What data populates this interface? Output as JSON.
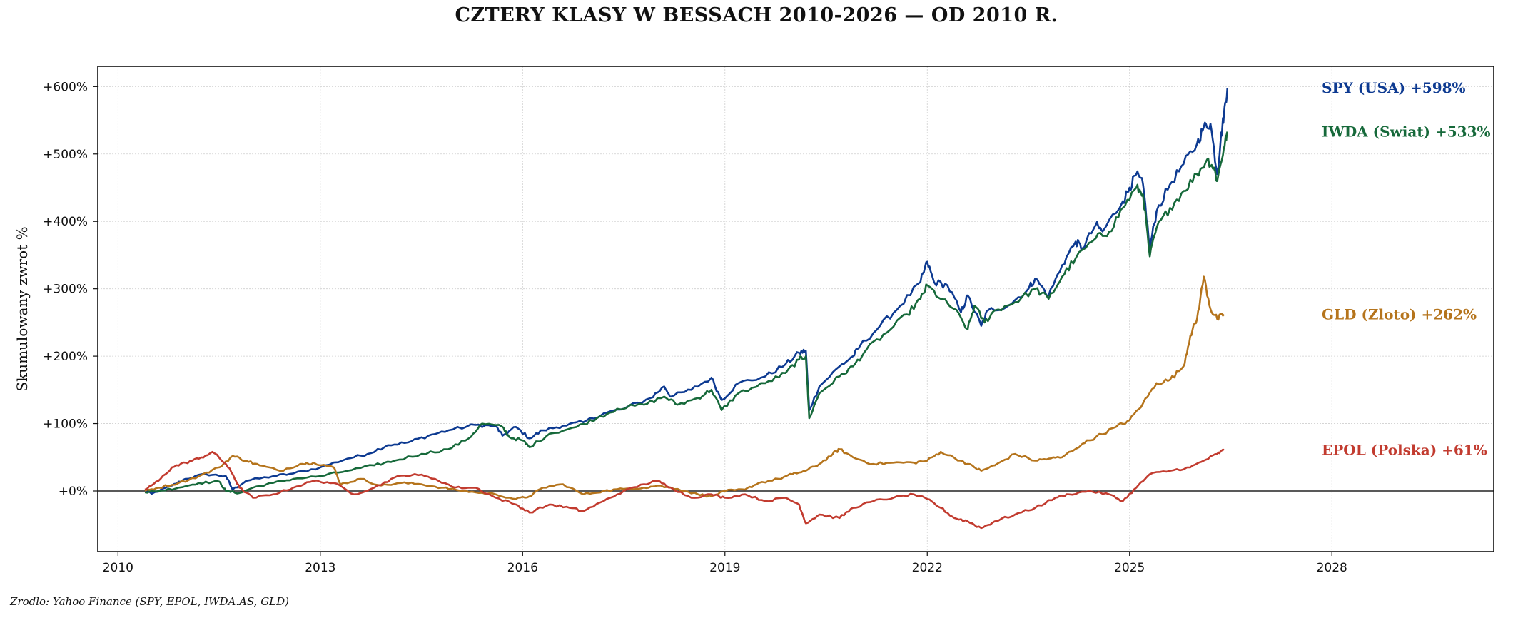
{
  "chart_data": {
    "type": "line",
    "title": "CZTERY KLASY W BESSACH 2010-2026 — OD 2010 R.",
    "ylabel": "Skumulowany zwrot %",
    "xlabel": "",
    "source": "Zrodlo: Yahoo Finance (SPY, EPOL, IWDA.AS, GLD)",
    "xlim": [
      2009.7,
      2030.4
    ],
    "ylim": [
      -90,
      630
    ],
    "x_ticks": [
      2010,
      2013,
      2016,
      2019,
      2022,
      2025,
      2028
    ],
    "x_tick_labels": [
      "2010",
      "2013",
      "2016",
      "2019",
      "2022",
      "2025",
      "2028"
    ],
    "y_ticks": [
      0,
      100,
      200,
      300,
      400,
      500,
      600
    ],
    "y_tick_labels": [
      "+0%",
      "+100%",
      "+200%",
      "+300%",
      "+400%",
      "+500%",
      "+600%"
    ],
    "grid": true,
    "zero_line": true,
    "series": [
      {
        "name": "SPY (USA)",
        "end_label": "SPY (USA)  +598%",
        "label_y": 598,
        "color": "#0d3a91",
        "points": [
          [
            2010.4,
            0
          ],
          [
            2010.5,
            -4
          ],
          [
            2010.8,
            8
          ],
          [
            2011.0,
            18
          ],
          [
            2011.3,
            25
          ],
          [
            2011.6,
            22
          ],
          [
            2011.7,
            2
          ],
          [
            2011.9,
            15
          ],
          [
            2012.3,
            22
          ],
          [
            2012.6,
            26
          ],
          [
            2013.0,
            35
          ],
          [
            2013.4,
            48
          ],
          [
            2013.7,
            55
          ],
          [
            2014.0,
            68
          ],
          [
            2014.3,
            72
          ],
          [
            2014.6,
            82
          ],
          [
            2014.9,
            90
          ],
          [
            2015.3,
            98
          ],
          [
            2015.6,
            96
          ],
          [
            2015.7,
            82
          ],
          [
            2015.9,
            95
          ],
          [
            2016.1,
            78
          ],
          [
            2016.3,
            90
          ],
          [
            2016.6,
            97
          ],
          [
            2016.9,
            102
          ],
          [
            2017.2,
            115
          ],
          [
            2017.5,
            122
          ],
          [
            2017.9,
            138
          ],
          [
            2018.1,
            155
          ],
          [
            2018.2,
            140
          ],
          [
            2018.5,
            150
          ],
          [
            2018.8,
            168
          ],
          [
            2018.95,
            135
          ],
          [
            2019.2,
            160
          ],
          [
            2019.6,
            170
          ],
          [
            2019.9,
            188
          ],
          [
            2020.1,
            205
          ],
          [
            2020.2,
            208
          ],
          [
            2020.25,
            120
          ],
          [
            2020.4,
            155
          ],
          [
            2020.7,
            185
          ],
          [
            2020.9,
            200
          ],
          [
            2021.0,
            215
          ],
          [
            2021.3,
            245
          ],
          [
            2021.6,
            275
          ],
          [
            2021.9,
            310
          ],
          [
            2022.0,
            340
          ],
          [
            2022.1,
            310
          ],
          [
            2022.3,
            305
          ],
          [
            2022.5,
            265
          ],
          [
            2022.6,
            290
          ],
          [
            2022.8,
            245
          ],
          [
            2022.9,
            268
          ],
          [
            2023.2,
            275
          ],
          [
            2023.5,
            300
          ],
          [
            2023.6,
            315
          ],
          [
            2023.8,
            290
          ],
          [
            2024.0,
            335
          ],
          [
            2024.2,
            370
          ],
          [
            2024.3,
            360
          ],
          [
            2024.5,
            395
          ],
          [
            2024.6,
            385
          ],
          [
            2024.9,
            430
          ],
          [
            2025.0,
            450
          ],
          [
            2025.1,
            470
          ],
          [
            2025.2,
            455
          ],
          [
            2025.3,
            360
          ],
          [
            2025.4,
            415
          ],
          [
            2025.6,
            455
          ],
          [
            2025.8,
            485
          ],
          [
            2026.0,
            515
          ],
          [
            2026.1,
            540
          ],
          [
            2026.2,
            545
          ],
          [
            2026.3,
            470
          ],
          [
            2026.35,
            520
          ],
          [
            2026.4,
            560
          ],
          [
            2026.45,
            598
          ]
        ]
      },
      {
        "name": "IWDA (Swiat)",
        "end_label": "IWDA (Swiat)  +533%",
        "label_y": 533,
        "color": "#16693a",
        "points": [
          [
            2010.4,
            -2
          ],
          [
            2010.6,
            0
          ],
          [
            2010.9,
            5
          ],
          [
            2011.2,
            12
          ],
          [
            2011.5,
            14
          ],
          [
            2011.6,
            0
          ],
          [
            2011.8,
            -3
          ],
          [
            2012.0,
            5
          ],
          [
            2012.3,
            12
          ],
          [
            2012.6,
            18
          ],
          [
            2013.0,
            22
          ],
          [
            2013.4,
            30
          ],
          [
            2013.8,
            38
          ],
          [
            2014.1,
            45
          ],
          [
            2014.5,
            55
          ],
          [
            2014.9,
            62
          ],
          [
            2015.2,
            78
          ],
          [
            2015.4,
            100
          ],
          [
            2015.7,
            95
          ],
          [
            2015.8,
            80
          ],
          [
            2016.0,
            75
          ],
          [
            2016.1,
            65
          ],
          [
            2016.4,
            85
          ],
          [
            2016.8,
            95
          ],
          [
            2017.1,
            108
          ],
          [
            2017.4,
            122
          ],
          [
            2017.8,
            128
          ],
          [
            2018.1,
            140
          ],
          [
            2018.3,
            128
          ],
          [
            2018.6,
            138
          ],
          [
            2018.8,
            150
          ],
          [
            2018.95,
            120
          ],
          [
            2019.2,
            145
          ],
          [
            2019.6,
            160
          ],
          [
            2019.9,
            175
          ],
          [
            2020.1,
            195
          ],
          [
            2020.2,
            200
          ],
          [
            2020.25,
            108
          ],
          [
            2020.4,
            145
          ],
          [
            2020.7,
            170
          ],
          [
            2020.9,
            185
          ],
          [
            2021.1,
            210
          ],
          [
            2021.4,
            235
          ],
          [
            2021.7,
            262
          ],
          [
            2021.9,
            285
          ],
          [
            2022.0,
            305
          ],
          [
            2022.2,
            285
          ],
          [
            2022.4,
            270
          ],
          [
            2022.6,
            240
          ],
          [
            2022.7,
            275
          ],
          [
            2022.85,
            250
          ],
          [
            2023.0,
            268
          ],
          [
            2023.3,
            280
          ],
          [
            2023.6,
            300
          ],
          [
            2023.8,
            285
          ],
          [
            2024.0,
            318
          ],
          [
            2024.2,
            345
          ],
          [
            2024.5,
            375
          ],
          [
            2024.7,
            385
          ],
          [
            2024.9,
            420
          ],
          [
            2025.1,
            450
          ],
          [
            2025.2,
            440
          ],
          [
            2025.3,
            348
          ],
          [
            2025.4,
            390
          ],
          [
            2025.6,
            420
          ],
          [
            2025.8,
            445
          ],
          [
            2026.0,
            470
          ],
          [
            2026.15,
            492
          ],
          [
            2026.25,
            480
          ],
          [
            2026.3,
            460
          ],
          [
            2026.4,
            510
          ],
          [
            2026.45,
            533
          ]
        ]
      },
      {
        "name": "GLD (Zloto)",
        "end_label": "GLD (Zloto)  +262%",
        "label_y": 262,
        "color": "#b5741c",
        "points": [
          [
            2010.4,
            0
          ],
          [
            2010.6,
            5
          ],
          [
            2010.9,
            12
          ],
          [
            2011.2,
            22
          ],
          [
            2011.5,
            35
          ],
          [
            2011.7,
            52
          ],
          [
            2011.9,
            45
          ],
          [
            2012.1,
            38
          ],
          [
            2012.4,
            30
          ],
          [
            2012.7,
            40
          ],
          [
            2012.9,
            42
          ],
          [
            2013.2,
            35
          ],
          [
            2013.3,
            10
          ],
          [
            2013.6,
            18
          ],
          [
            2013.9,
            8
          ],
          [
            2014.2,
            12
          ],
          [
            2014.5,
            10
          ],
          [
            2014.8,
            5
          ],
          [
            2015.0,
            2
          ],
          [
            2015.3,
            -2
          ],
          [
            2015.6,
            -5
          ],
          [
            2015.9,
            -12
          ],
          [
            2016.1,
            -8
          ],
          [
            2016.3,
            5
          ],
          [
            2016.6,
            10
          ],
          [
            2016.9,
            -5
          ],
          [
            2017.2,
            0
          ],
          [
            2017.5,
            3
          ],
          [
            2017.8,
            5
          ],
          [
            2018.0,
            8
          ],
          [
            2018.3,
            3
          ],
          [
            2018.6,
            -5
          ],
          [
            2018.8,
            -8
          ],
          [
            2019.0,
            0
          ],
          [
            2019.3,
            2
          ],
          [
            2019.5,
            12
          ],
          [
            2019.8,
            18
          ],
          [
            2020.0,
            25
          ],
          [
            2020.2,
            30
          ],
          [
            2020.4,
            40
          ],
          [
            2020.6,
            55
          ],
          [
            2020.7,
            62
          ],
          [
            2020.9,
            50
          ],
          [
            2021.2,
            40
          ],
          [
            2021.5,
            42
          ],
          [
            2021.8,
            42
          ],
          [
            2022.0,
            45
          ],
          [
            2022.2,
            58
          ],
          [
            2022.5,
            45
          ],
          [
            2022.7,
            35
          ],
          [
            2022.8,
            30
          ],
          [
            2023.0,
            38
          ],
          [
            2023.3,
            55
          ],
          [
            2023.6,
            45
          ],
          [
            2023.8,
            48
          ],
          [
            2024.0,
            50
          ],
          [
            2024.3,
            70
          ],
          [
            2024.5,
            80
          ],
          [
            2024.8,
            95
          ],
          [
            2025.0,
            105
          ],
          [
            2025.2,
            130
          ],
          [
            2025.4,
            160
          ],
          [
            2025.6,
            165
          ],
          [
            2025.8,
            185
          ],
          [
            2025.9,
            230
          ],
          [
            2026.0,
            255
          ],
          [
            2026.1,
            318
          ],
          [
            2026.2,
            270
          ],
          [
            2026.3,
            255
          ],
          [
            2026.4,
            262
          ]
        ]
      },
      {
        "name": "EPOL (Polska)",
        "end_label": "EPOL (Polska)  +61%",
        "label_y": 61,
        "color": "#c23b2f",
        "points": [
          [
            2010.4,
            2
          ],
          [
            2010.6,
            15
          ],
          [
            2010.8,
            35
          ],
          [
            2011.0,
            42
          ],
          [
            2011.2,
            48
          ],
          [
            2011.4,
            58
          ],
          [
            2011.6,
            40
          ],
          [
            2011.7,
            25
          ],
          [
            2011.8,
            5
          ],
          [
            2012.0,
            -10
          ],
          [
            2012.3,
            -5
          ],
          [
            2012.6,
            5
          ],
          [
            2012.9,
            15
          ],
          [
            2013.2,
            12
          ],
          [
            2013.5,
            -5
          ],
          [
            2013.8,
            5
          ],
          [
            2014.1,
            20
          ],
          [
            2014.4,
            25
          ],
          [
            2014.7,
            18
          ],
          [
            2015.0,
            5
          ],
          [
            2015.3,
            5
          ],
          [
            2015.6,
            -10
          ],
          [
            2015.9,
            -20
          ],
          [
            2016.1,
            -32
          ],
          [
            2016.4,
            -20
          ],
          [
            2016.7,
            -25
          ],
          [
            2016.9,
            -30
          ],
          [
            2017.2,
            -15
          ],
          [
            2017.5,
            0
          ],
          [
            2017.8,
            10
          ],
          [
            2018.0,
            15
          ],
          [
            2018.2,
            5
          ],
          [
            2018.5,
            -10
          ],
          [
            2018.8,
            -5
          ],
          [
            2019.0,
            -10
          ],
          [
            2019.3,
            -5
          ],
          [
            2019.6,
            -15
          ],
          [
            2019.9,
            -10
          ],
          [
            2020.1,
            -20
          ],
          [
            2020.2,
            -48
          ],
          [
            2020.4,
            -35
          ],
          [
            2020.7,
            -40
          ],
          [
            2020.9,
            -25
          ],
          [
            2021.2,
            -15
          ],
          [
            2021.5,
            -10
          ],
          [
            2021.8,
            -5
          ],
          [
            2022.0,
            -12
          ],
          [
            2022.2,
            -25
          ],
          [
            2022.4,
            -40
          ],
          [
            2022.6,
            -45
          ],
          [
            2022.8,
            -55
          ],
          [
            2023.0,
            -45
          ],
          [
            2023.3,
            -35
          ],
          [
            2023.6,
            -25
          ],
          [
            2023.9,
            -10
          ],
          [
            2024.1,
            -5
          ],
          [
            2024.4,
            0
          ],
          [
            2024.7,
            -5
          ],
          [
            2024.9,
            -15
          ],
          [
            2025.1,
            5
          ],
          [
            2025.3,
            25
          ],
          [
            2025.6,
            30
          ],
          [
            2025.9,
            35
          ],
          [
            2026.1,
            45
          ],
          [
            2026.3,
            55
          ],
          [
            2026.4,
            61
          ]
        ]
      }
    ]
  }
}
